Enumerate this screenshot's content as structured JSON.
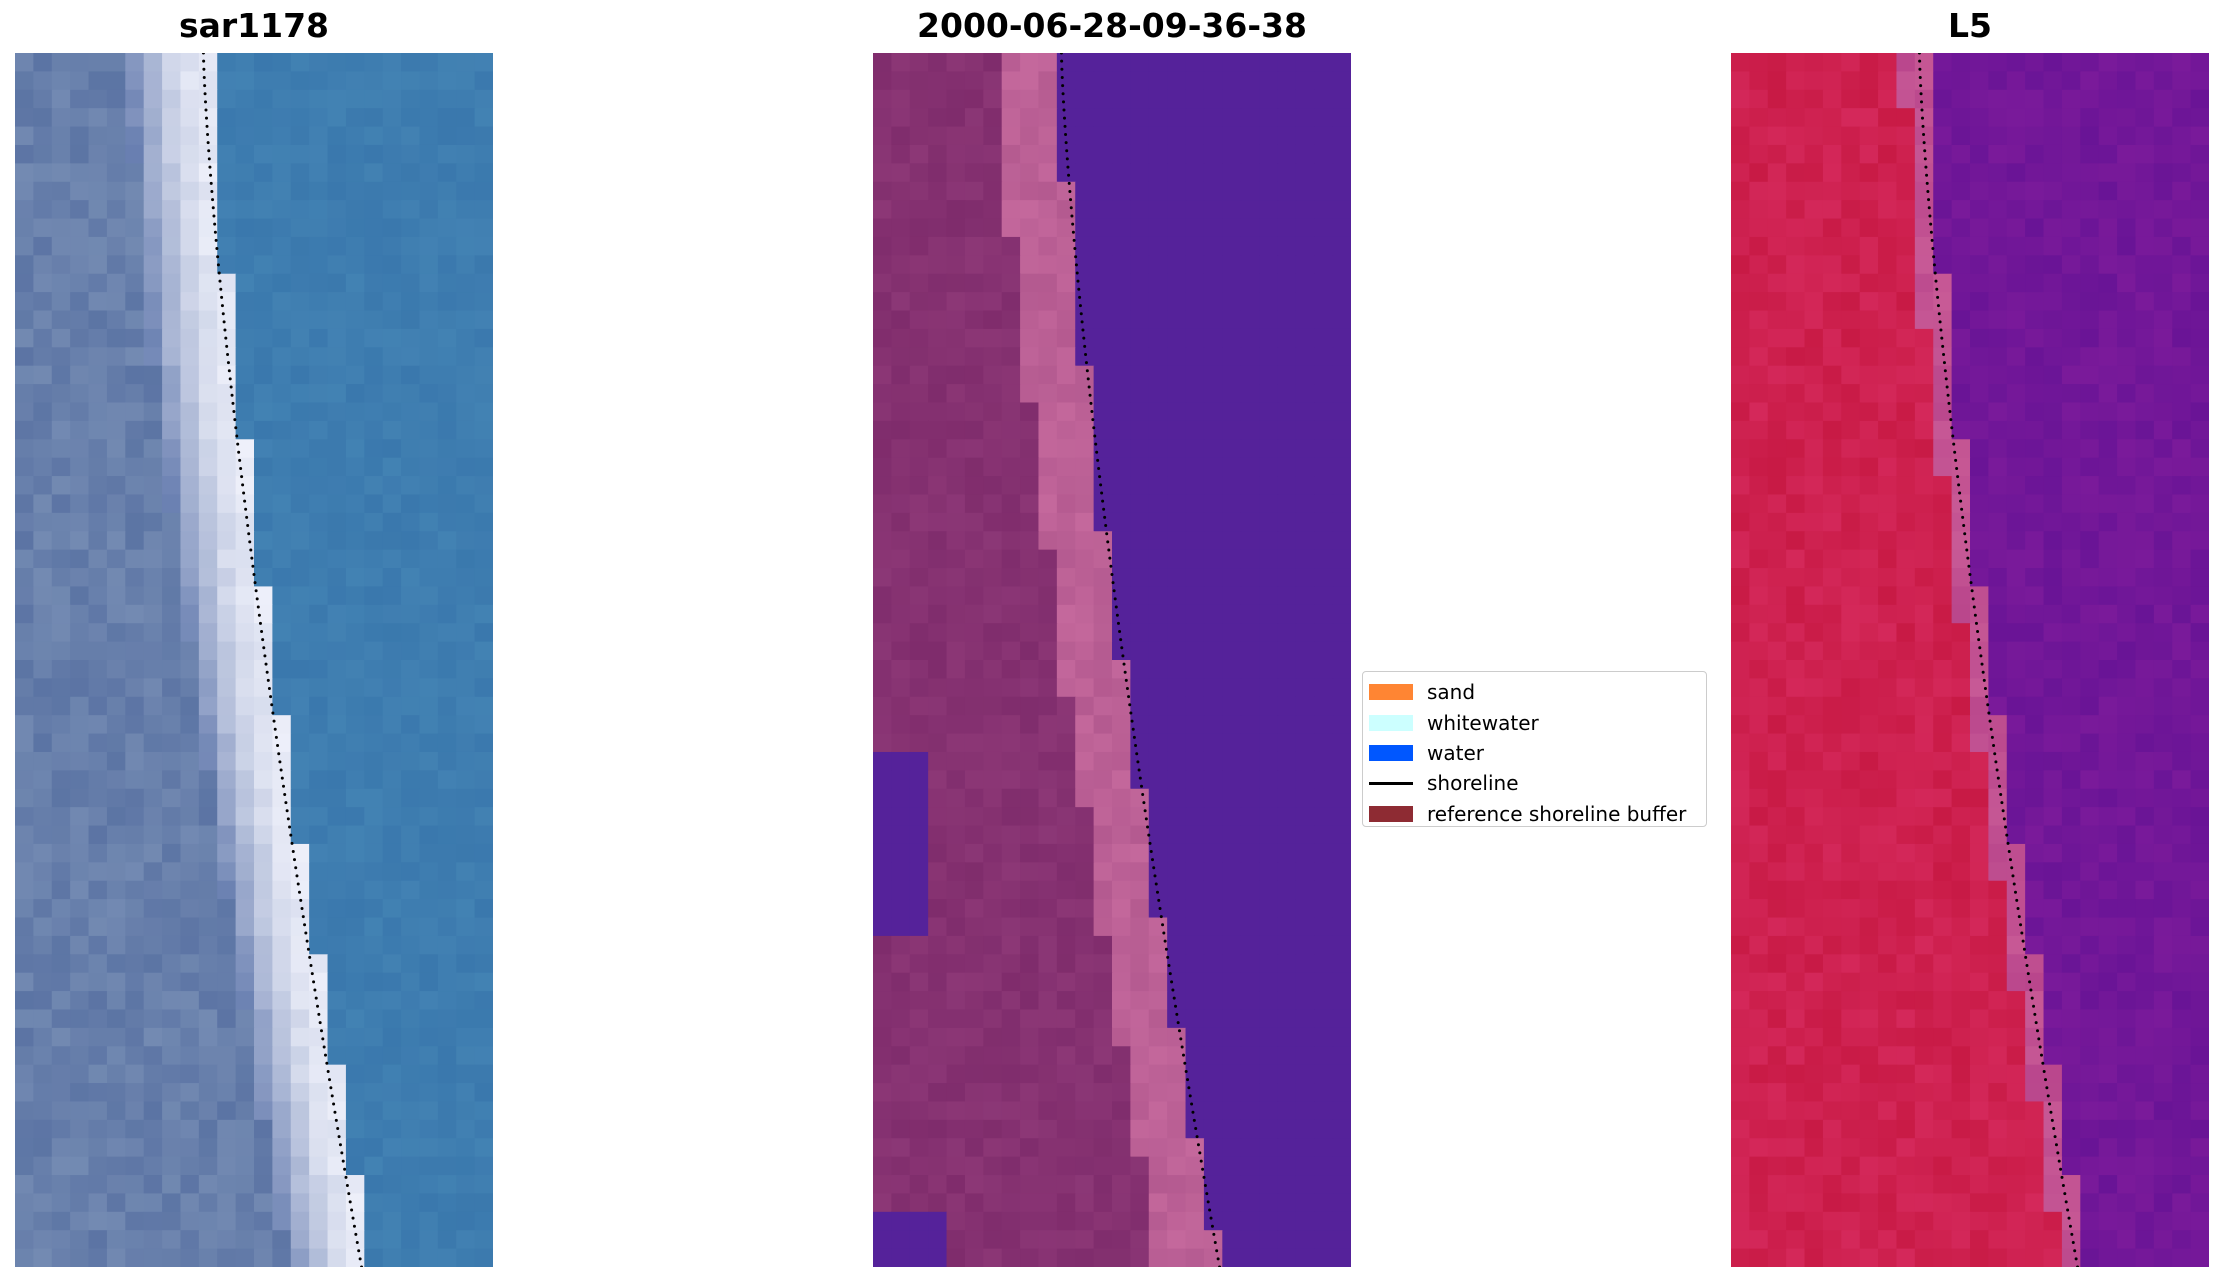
{
  "panels": [
    {
      "title": "sar1178",
      "palette": "rgb"
    },
    {
      "title": "2000-06-28-09-36-38",
      "palette": "classified"
    },
    {
      "title": "L5",
      "palette": "ndwi"
    }
  ],
  "legend": {
    "items": [
      {
        "label": "sand",
        "kind": "patch",
        "color": "#ff8533"
      },
      {
        "label": "whitewater",
        "kind": "patch",
        "color": "#ccffff"
      },
      {
        "label": "water",
        "kind": "patch",
        "color": "#0057ff"
      },
      {
        "label": "shoreline",
        "kind": "line",
        "color": "#000000"
      },
      {
        "label": "reference shoreline buffer",
        "kind": "patch",
        "color": "#8e2b33"
      }
    ]
  },
  "colors": {
    "sea_blue": "#3a78ad",
    "classified_water": "#55229a",
    "classified_sand": "#7f2c6c",
    "classified_buffer": "#b45a90",
    "ndwi_land": "#c81a45",
    "ndwi_water": "#7a1a9a",
    "shoreline_points": "#000000"
  }
}
